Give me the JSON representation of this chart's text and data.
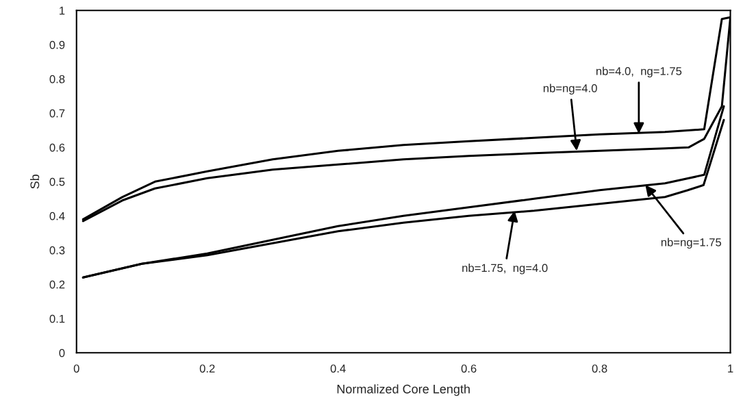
{
  "chart_data": {
    "type": "line",
    "xlabel": "Normalized Core Length",
    "ylabel": "Sb",
    "xlim": [
      0,
      1
    ],
    "ylim": [
      0,
      1
    ],
    "xticks": [
      0,
      0.2,
      0.4,
      0.6,
      0.8,
      1
    ],
    "yticks": [
      0,
      0.1,
      0.2,
      0.3,
      0.4,
      0.5,
      0.6,
      0.7,
      0.8,
      0.9,
      1
    ],
    "grid": false,
    "legend": false,
    "marker": "none",
    "line_style": "solid",
    "series": [
      {
        "color": "#000000",
        "x": [
          0.01,
          0.07,
          0.12,
          0.2,
          0.3,
          0.4,
          0.5,
          0.6,
          0.7,
          0.8,
          0.9,
          0.96,
          0.987,
          1.0
        ],
        "values": [
          0.39,
          0.455,
          0.5,
          0.53,
          0.565,
          0.59,
          0.607,
          0.618,
          0.628,
          0.638,
          0.645,
          0.653,
          0.975,
          0.98
        ]
      },
      {
        "color": "#000000",
        "x": [
          0.01,
          0.07,
          0.12,
          0.2,
          0.3,
          0.4,
          0.5,
          0.6,
          0.7,
          0.8,
          0.9,
          0.936,
          0.96,
          0.987,
          1.0
        ],
        "values": [
          0.385,
          0.445,
          0.48,
          0.51,
          0.535,
          0.55,
          0.565,
          0.575,
          0.583,
          0.59,
          0.597,
          0.6,
          0.625,
          0.72,
          0.98
        ]
      },
      {
        "color": "#000000",
        "x": [
          0.01,
          0.1,
          0.2,
          0.3,
          0.4,
          0.5,
          0.6,
          0.7,
          0.8,
          0.9,
          0.96,
          0.99
        ],
        "values": [
          0.22,
          0.26,
          0.29,
          0.33,
          0.37,
          0.4,
          0.425,
          0.45,
          0.475,
          0.495,
          0.52,
          0.72
        ]
      },
      {
        "color": "#000000",
        "x": [
          0.01,
          0.1,
          0.2,
          0.3,
          0.4,
          0.5,
          0.6,
          0.7,
          0.8,
          0.9,
          0.935,
          0.959,
          0.99
        ],
        "values": [
          0.22,
          0.26,
          0.285,
          0.32,
          0.355,
          0.38,
          0.4,
          0.415,
          0.435,
          0.455,
          0.475,
          0.49,
          0.68
        ]
      }
    ],
    "annotations": [
      {
        "text": "nb=4.0,  ng=1.75",
        "x": 0.86,
        "y": 0.64
      },
      {
        "text": "nb=ng=4.0",
        "x": 0.765,
        "y": 0.59
      },
      {
        "text": "nb=ng=1.75",
        "x": 0.87,
        "y": 0.49
      },
      {
        "text": "nb=1.75,  ng=4.0",
        "x": 0.67,
        "y": 0.415
      }
    ]
  }
}
